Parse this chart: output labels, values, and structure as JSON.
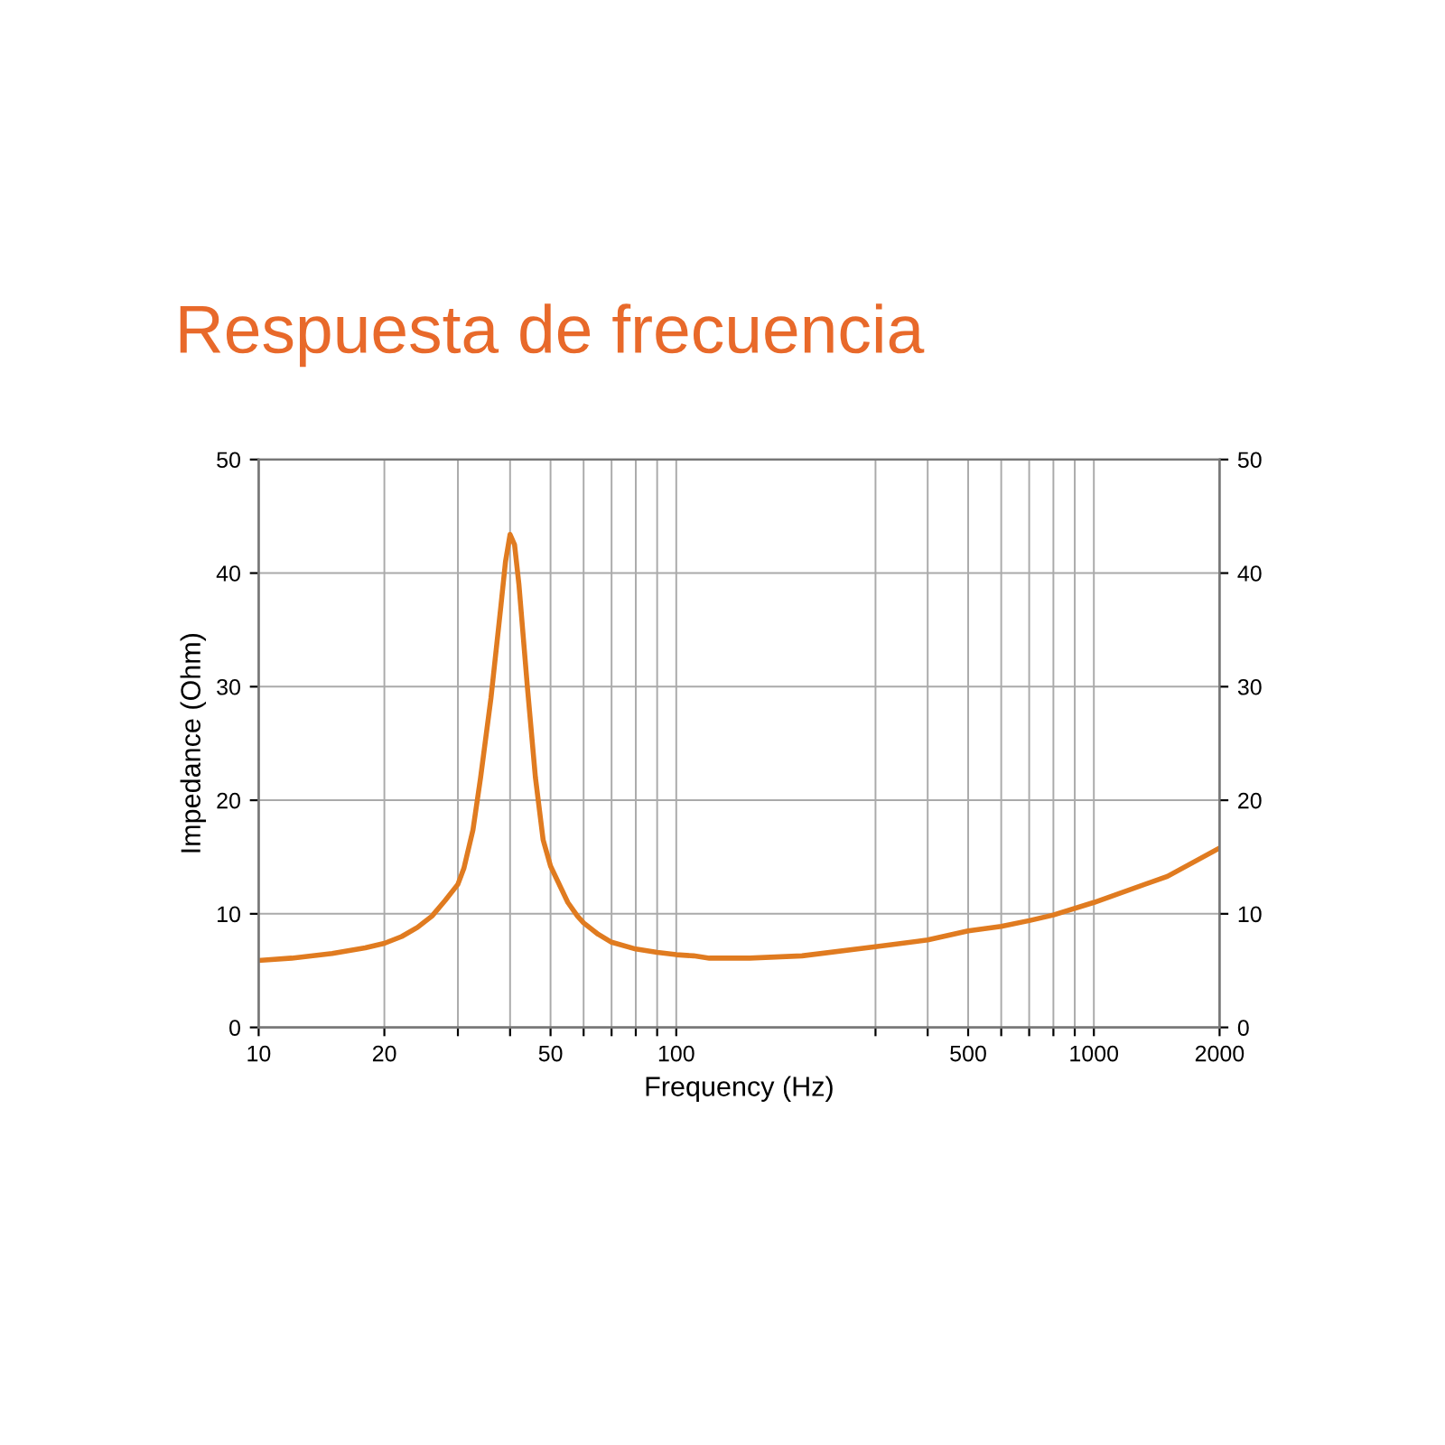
{
  "chart_data": {
    "type": "line",
    "title": "Respuesta de frecuencia",
    "xlabel": "Frequency (Hz)",
    "ylabel": "Impedance (Ohm)",
    "log": "x",
    "grid": true,
    "marker": "none",
    "line_style": "solid",
    "xlim": [
      10,
      2000
    ],
    "ylim": [
      0,
      50
    ],
    "y2lim": [
      0,
      50
    ],
    "xticks": [
      10,
      20,
      {
        "value": 30,
        "label": null
      },
      {
        "value": 40,
        "label": null
      },
      50,
      {
        "value": 60,
        "label": null
      },
      {
        "value": 70,
        "label": null
      },
      {
        "value": 80,
        "label": null
      },
      {
        "value": 90,
        "label": null
      },
      100,
      {
        "value": 300,
        "label": null
      },
      {
        "value": 400,
        "label": null
      },
      500,
      {
        "value": 600,
        "label": null
      },
      {
        "value": 700,
        "label": null
      },
      {
        "value": 800,
        "label": null
      },
      {
        "value": 900,
        "label": null
      },
      1000,
      2000
    ],
    "yticks": [
      0,
      10,
      20,
      30,
      40,
      50
    ],
    "y2ticks": [
      0,
      10,
      20,
      30,
      40,
      50
    ],
    "x": [
      10,
      12,
      15,
      18,
      20,
      22,
      24,
      26,
      28,
      30,
      31,
      32.6,
      34,
      36,
      38,
      39,
      40,
      41,
      42,
      44,
      46,
      48,
      50,
      55,
      58,
      60,
      65,
      70,
      80,
      90,
      100,
      110,
      120,
      150,
      200,
      300,
      400,
      500,
      600,
      700,
      800,
      1000,
      1500,
      2000
    ],
    "series": [
      {
        "color": "#e07b20",
        "values": [
          5.9,
          6.1,
          6.5,
          7.0,
          7.4,
          8.0,
          8.8,
          9.8,
          11.2,
          12.6,
          14.0,
          17.4,
          22,
          29,
          37,
          41,
          43.4,
          42.5,
          39,
          30,
          22,
          16.5,
          14.2,
          11,
          9.8,
          9.2,
          8.2,
          7.5,
          6.9,
          6.6,
          6.4,
          6.3,
          6.1,
          6.1,
          6.3,
          7.1,
          7.7,
          8.5,
          8.9,
          9.4,
          9.9,
          11.0,
          13.3,
          15.8
        ]
      }
    ]
  }
}
